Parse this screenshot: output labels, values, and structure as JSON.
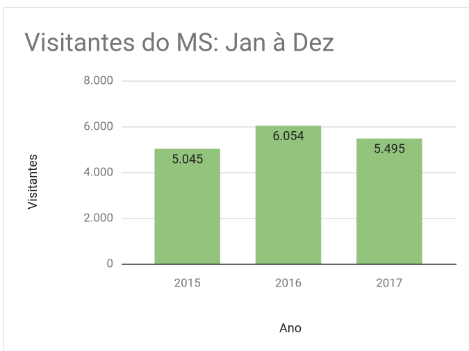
{
  "chart_data": {
    "type": "bar",
    "title": "Visitantes do MS: Jan à Dez",
    "x_label": "Ano",
    "y_label": "Visitantes",
    "categories": [
      "2015",
      "2016",
      "2017"
    ],
    "values": [
      5045,
      6054,
      5495
    ],
    "value_labels": [
      "5.045",
      "6.054",
      "5.495"
    ],
    "color": "#93c47d",
    "ylim": [
      0,
      8000
    ],
    "yticks": [
      0,
      {
        "value": 2000,
        "label": "2.000"
      },
      {
        "value": 4000,
        "label": "4.000"
      },
      {
        "value": 6000,
        "label": "6.000"
      },
      {
        "value": 8000,
        "label": "8.000"
      }
    ],
    "grid": true
  }
}
